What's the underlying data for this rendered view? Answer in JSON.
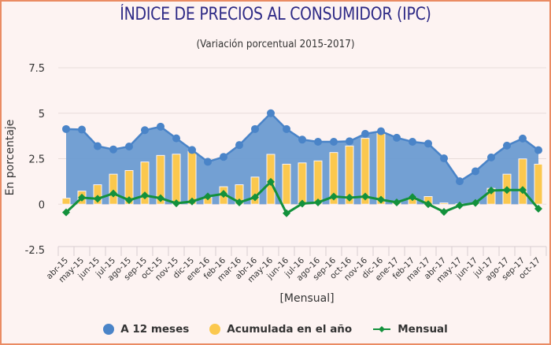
{
  "title": "ÍNDICE DE PRECIOS AL CONSUMIDOR (IPC)",
  "subtitle": "(Variación porcentual 2015-2017)",
  "colors": {
    "border": "#ea8b63",
    "background": "#fdf3f2",
    "title": "#2e2a86",
    "area": "#6b9bd1",
    "area_line": "#4a84c8",
    "bar": "#fbc84e",
    "line": "#13913c"
  },
  "chart_data": {
    "type": "bar+area+line",
    "title": "ÍNDICE DE PRECIOS AL CONSUMIDOR (IPC)",
    "subtitle": "(Variación porcentual 2015-2017)",
    "xlabel": "[Mensual]",
    "ylabel": "En porcentaje",
    "ylim": [
      -2.5,
      7.5
    ],
    "yticks": [
      "7.5",
      "5",
      "2.5",
      "0",
      "-2.5"
    ],
    "ytick_values": [
      7.5,
      5,
      2.5,
      0,
      -2.5
    ],
    "grid": true,
    "legend_position": "bottom",
    "categories": [
      "abr-15",
      "may-15",
      "jun-15",
      "jul-15",
      "ago-15",
      "sep-15",
      "oct-15",
      "nov-15",
      "dic-15",
      "ene-16",
      "feb-16",
      "mar-16",
      "abr-16",
      "may-16",
      "jun-16",
      "jul-16",
      "ago-16",
      "sep-16",
      "oct-16",
      "nov-16",
      "dic-16",
      "ene-17",
      "feb-17",
      "mar-17",
      "abr-17",
      "may-17",
      "jun-17",
      "jul-17",
      "ago-17",
      "sep-17",
      "oct-17"
    ],
    "series": [
      {
        "name": "A 12 meses",
        "type": "area",
        "values": [
          4.13,
          4.1,
          3.19,
          3.01,
          3.17,
          4.07,
          4.26,
          3.62,
          2.98,
          2.33,
          2.6,
          3.25,
          4.13,
          5.0,
          4.13,
          3.55,
          3.43,
          3.43,
          3.46,
          3.87,
          4.01,
          3.65,
          3.43,
          3.33,
          2.52,
          1.26,
          1.81,
          2.57,
          3.22,
          3.61,
          2.97
        ]
      },
      {
        "name": "Acumulada en el año",
        "type": "bar",
        "values": [
          0.33,
          0.72,
          1.07,
          1.65,
          1.85,
          2.32,
          2.68,
          2.75,
          2.9,
          0.37,
          0.96,
          1.07,
          1.49,
          2.74,
          2.2,
          2.27,
          2.38,
          2.84,
          3.2,
          3.62,
          3.93,
          0.1,
          0.38,
          0.42,
          0.07,
          0.02,
          0.07,
          0.87,
          1.65,
          2.49,
          2.2
        ]
      },
      {
        "name": "Mensual",
        "type": "line",
        "values": [
          -0.45,
          0.36,
          0.3,
          0.59,
          0.22,
          0.48,
          0.33,
          0.05,
          0.15,
          0.43,
          0.57,
          0.1,
          0.38,
          1.23,
          -0.5,
          0.03,
          0.1,
          0.42,
          0.36,
          0.42,
          0.25,
          0.1,
          0.39,
          0.0,
          -0.42,
          -0.07,
          0.07,
          0.75,
          0.78,
          0.78,
          -0.25
        ]
      }
    ]
  },
  "legend": [
    {
      "label": "A 12 meses",
      "marker": "circle-icon"
    },
    {
      "label": "Acumulada en el año",
      "marker": "circle-icon"
    },
    {
      "label": "Mensual",
      "marker": "line-diamond-icon"
    }
  ]
}
